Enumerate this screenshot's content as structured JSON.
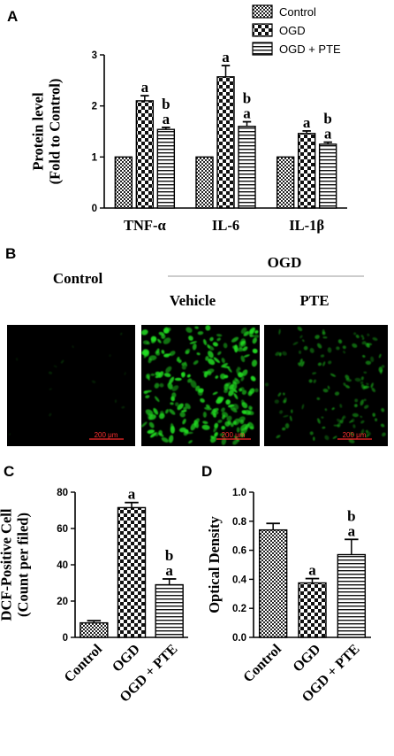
{
  "panel_labels": [
    "A",
    "B",
    "C",
    "D"
  ],
  "micrograph_panel": {
    "group_label": "OGD",
    "left_label": "Control",
    "sub_labels": [
      "Vehicle",
      "PTE"
    ],
    "scale_bar": "200 μm",
    "colors": {
      "fluorescence": "#22dd22",
      "background": "#000000"
    }
  },
  "colors": {
    "bar_fill": "#ffffff",
    "stroke": "#000000"
  },
  "chart_data": [
    {
      "id": "A",
      "type": "bar",
      "ylabel": [
        "Protein level",
        "(Fold to Control)"
      ],
      "ylim": [
        0,
        3
      ],
      "yticks": [
        "0",
        "1",
        "2",
        "3"
      ],
      "categories": [
        "TNF-α",
        "IL-6",
        "IL-1β"
      ],
      "legend": {
        "placement": "top-right",
        "entries": [
          "Control",
          "OGD",
          "OGD + PTE"
        ]
      },
      "series": [
        {
          "name": "Control",
          "pattern": "check",
          "values": [
            1.0,
            1.0,
            1.0
          ],
          "errors": [
            0,
            0,
            0
          ],
          "labels": [
            "",
            "",
            ""
          ]
        },
        {
          "name": "OGD",
          "pattern": "big-check",
          "values": [
            2.1,
            2.57,
            1.46
          ],
          "errors": [
            0.1,
            0.22,
            0.05
          ],
          "labels": [
            [
              "a"
            ],
            [
              "a"
            ],
            [
              "a"
            ]
          ]
        },
        {
          "name": "OGD + PTE",
          "pattern": "hlines",
          "values": [
            1.54,
            1.6,
            1.25
          ],
          "errors": [
            0.04,
            0.09,
            0.04
          ],
          "labels": [
            [
              "b",
              "a"
            ],
            [
              "b",
              "a"
            ],
            [
              "b",
              "a"
            ]
          ]
        }
      ]
    },
    {
      "id": "C",
      "type": "bar",
      "ylabel": [
        "DCF-Positive Cell",
        "(Count per filed)"
      ],
      "ylim": [
        0,
        80
      ],
      "yticks": [
        "0",
        "20",
        "40",
        "60",
        "80"
      ],
      "categories": [
        "Control",
        "OGD",
        "OGD + PTE"
      ],
      "series": [
        {
          "values": [
            8,
            71.5,
            29
          ],
          "errors": [
            1.2,
            2.8,
            3.2
          ],
          "patterns": [
            "check",
            "big-check",
            "hlines"
          ],
          "labels": [
            "",
            [
              "a"
            ],
            [
              "b",
              "a"
            ]
          ]
        }
      ]
    },
    {
      "id": "D",
      "type": "bar",
      "ylabel": [
        "Optical Density",
        ""
      ],
      "ylim": [
        0,
        1.0
      ],
      "yticks": [
        "0.0",
        "0.2",
        "0.4",
        "0.6",
        "0.8",
        "1.0"
      ],
      "categories": [
        "Control",
        "OGD",
        "OGD + PTE"
      ],
      "series": [
        {
          "values": [
            0.74,
            0.375,
            0.57
          ],
          "errors": [
            0.045,
            0.03,
            0.105
          ],
          "patterns": [
            "check",
            "big-check",
            "hlines"
          ],
          "labels": [
            "",
            [
              "a"
            ],
            [
              "b",
              "a"
            ]
          ]
        }
      ]
    }
  ]
}
